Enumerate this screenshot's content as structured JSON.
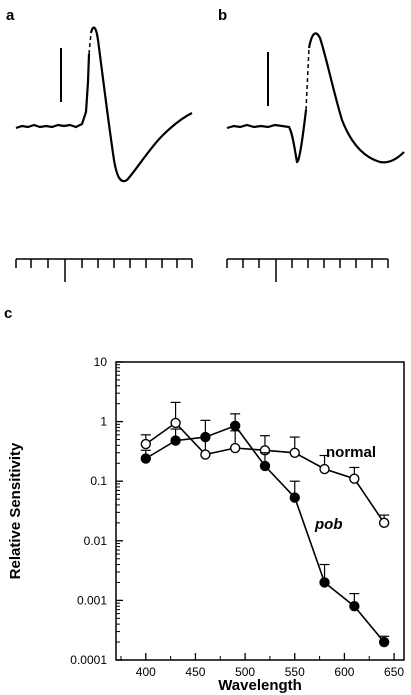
{
  "panels": {
    "a": "a",
    "b": "b",
    "c": "c"
  },
  "chart_data": {
    "type": "line",
    "xlabel": "Wavelength",
    "ylabel": "Relative Sensitivity",
    "xlim": [
      370,
      660
    ],
    "ylim": [
      0.0001,
      10
    ],
    "yscale": "log",
    "x_ticks": [
      "400",
      "450",
      "500",
      "550",
      "600",
      "650"
    ],
    "y_ticks": [
      "0.0001",
      "0.001",
      "0.01",
      "0.1",
      "1",
      "10"
    ],
    "series": [
      {
        "name": "normal",
        "marker": "open-circle",
        "x": [
          400,
          430,
          460,
          490,
          520,
          550,
          580,
          610,
          640
        ],
        "y": [
          0.42,
          0.95,
          0.28,
          0.36,
          0.33,
          0.3,
          0.16,
          0.11,
          0.02
        ],
        "err_up": [
          0.6,
          2.1,
          0.55,
          0.7,
          0.58,
          0.55,
          0.27,
          0.17,
          0.027
        ]
      },
      {
        "name": "pob",
        "marker": "filled-circle",
        "x": [
          400,
          430,
          460,
          490,
          520,
          550,
          580,
          610,
          640
        ],
        "y": [
          0.24,
          0.48,
          0.55,
          0.85,
          0.18,
          0.053,
          0.002,
          0.0008,
          0.0002
        ],
        "err_up": [
          0.33,
          0.75,
          1.05,
          1.35,
          0.3,
          0.1,
          0.004,
          0.0013,
          0.00025
        ]
      }
    ]
  }
}
